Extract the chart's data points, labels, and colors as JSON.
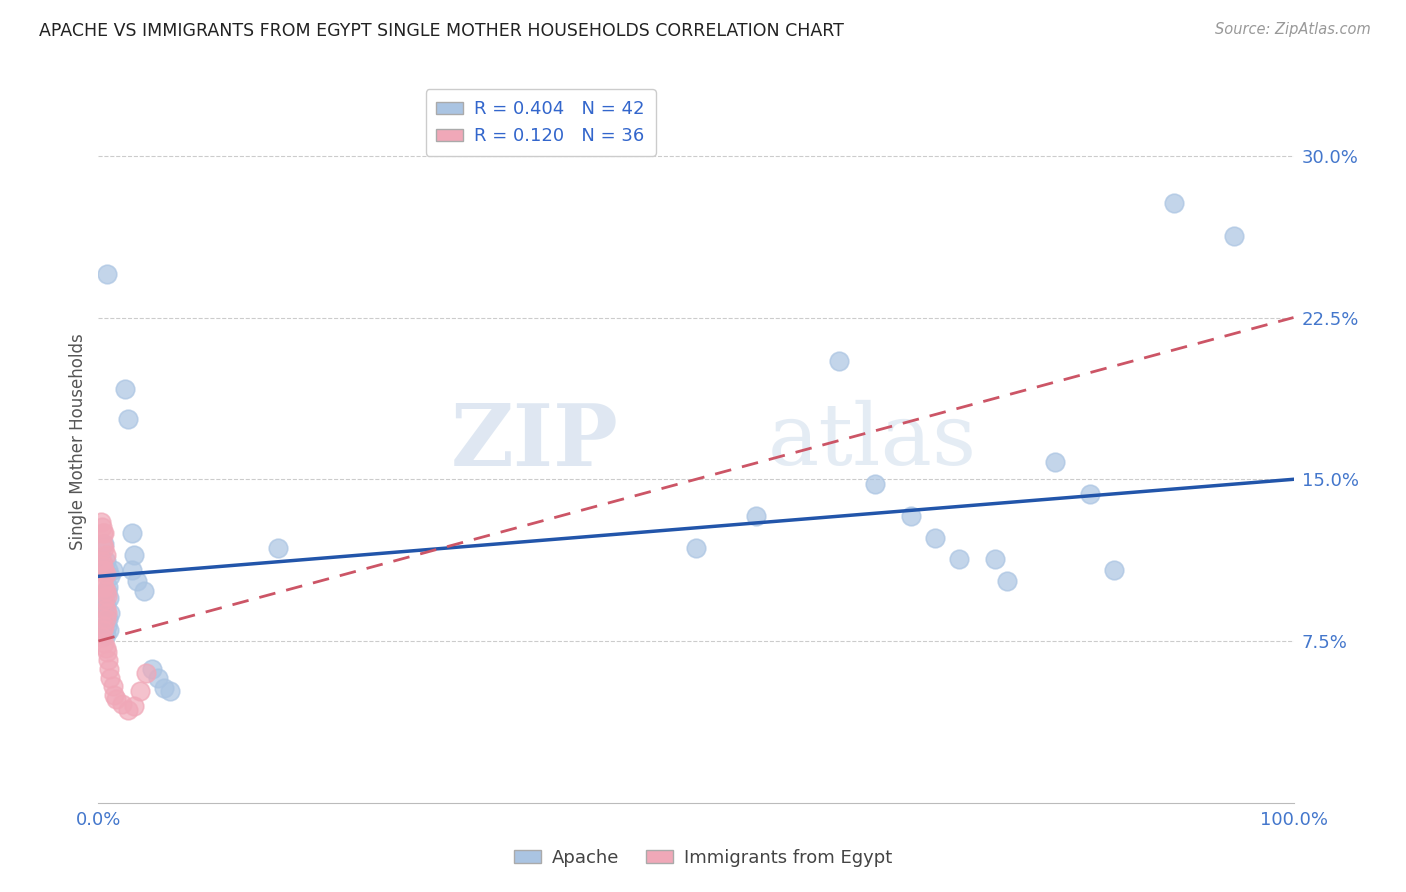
{
  "title": "APACHE VS IMMIGRANTS FROM EGYPT SINGLE MOTHER HOUSEHOLDS CORRELATION CHART",
  "source": "Source: ZipAtlas.com",
  "xlabel_apache": "Apache",
  "xlabel_egypt": "Immigrants from Egypt",
  "ylabel": "Single Mother Households",
  "xlim": [
    0.0,
    1.0
  ],
  "ylim": [
    0.0,
    0.335
  ],
  "xticks": [
    0.0,
    0.25,
    0.5,
    0.75,
    1.0
  ],
  "xtick_labels": [
    "0.0%",
    "",
    "",
    "",
    "100.0%"
  ],
  "yticks": [
    0.075,
    0.15,
    0.225,
    0.3
  ],
  "ytick_labels": [
    "7.5%",
    "15.0%",
    "22.5%",
    "30.0%"
  ],
  "apache_R": 0.404,
  "apache_N": 42,
  "egypt_R": 0.12,
  "egypt_N": 36,
  "apache_color": "#aac4e2",
  "egypt_color": "#f0a8b8",
  "apache_line_color": "#2255aa",
  "egypt_line_color": "#cc5566",
  "apache_scatter": [
    [
      0.007,
      0.245
    ],
    [
      0.005,
      0.12
    ],
    [
      0.006,
      0.112
    ],
    [
      0.008,
      0.108
    ],
    [
      0.01,
      0.105
    ],
    [
      0.008,
      0.1
    ],
    [
      0.007,
      0.098
    ],
    [
      0.009,
      0.095
    ],
    [
      0.006,
      0.092
    ],
    [
      0.005,
      0.09
    ],
    [
      0.01,
      0.088
    ],
    [
      0.008,
      0.085
    ],
    [
      0.007,
      0.082
    ],
    [
      0.009,
      0.08
    ],
    [
      0.006,
      0.078
    ],
    [
      0.012,
      0.108
    ],
    [
      0.022,
      0.192
    ],
    [
      0.025,
      0.178
    ],
    [
      0.028,
      0.125
    ],
    [
      0.03,
      0.115
    ],
    [
      0.028,
      0.108
    ],
    [
      0.032,
      0.103
    ],
    [
      0.038,
      0.098
    ],
    [
      0.045,
      0.062
    ],
    [
      0.05,
      0.058
    ],
    [
      0.055,
      0.053
    ],
    [
      0.06,
      0.052
    ],
    [
      0.15,
      0.118
    ],
    [
      0.5,
      0.118
    ],
    [
      0.55,
      0.133
    ],
    [
      0.62,
      0.205
    ],
    [
      0.65,
      0.148
    ],
    [
      0.68,
      0.133
    ],
    [
      0.7,
      0.123
    ],
    [
      0.72,
      0.113
    ],
    [
      0.75,
      0.113
    ],
    [
      0.76,
      0.103
    ],
    [
      0.8,
      0.158
    ],
    [
      0.83,
      0.143
    ],
    [
      0.85,
      0.108
    ],
    [
      0.9,
      0.278
    ],
    [
      0.95,
      0.263
    ]
  ],
  "egypt_scatter": [
    [
      0.002,
      0.13
    ],
    [
      0.003,
      0.128
    ],
    [
      0.004,
      0.125
    ],
    [
      0.005,
      0.125
    ],
    [
      0.004,
      0.12
    ],
    [
      0.005,
      0.118
    ],
    [
      0.006,
      0.115
    ],
    [
      0.003,
      0.112
    ],
    [
      0.004,
      0.11
    ],
    [
      0.005,
      0.108
    ],
    [
      0.006,
      0.106
    ],
    [
      0.004,
      0.102
    ],
    [
      0.005,
      0.1
    ],
    [
      0.006,
      0.098
    ],
    [
      0.007,
      0.096
    ],
    [
      0.005,
      0.094
    ],
    [
      0.006,
      0.09
    ],
    [
      0.007,
      0.088
    ],
    [
      0.006,
      0.085
    ],
    [
      0.005,
      0.082
    ],
    [
      0.004,
      0.08
    ],
    [
      0.003,
      0.077
    ],
    [
      0.005,
      0.074
    ],
    [
      0.006,
      0.072
    ],
    [
      0.007,
      0.07
    ],
    [
      0.008,
      0.066
    ],
    [
      0.009,
      0.062
    ],
    [
      0.01,
      0.058
    ],
    [
      0.012,
      0.054
    ],
    [
      0.013,
      0.05
    ],
    [
      0.015,
      0.048
    ],
    [
      0.02,
      0.046
    ],
    [
      0.025,
      0.043
    ],
    [
      0.03,
      0.045
    ],
    [
      0.035,
      0.052
    ],
    [
      0.04,
      0.06
    ]
  ],
  "watermark_zip": "ZIP",
  "watermark_atlas": "atlas",
  "background_color": "#ffffff",
  "grid_color": "#cccccc"
}
